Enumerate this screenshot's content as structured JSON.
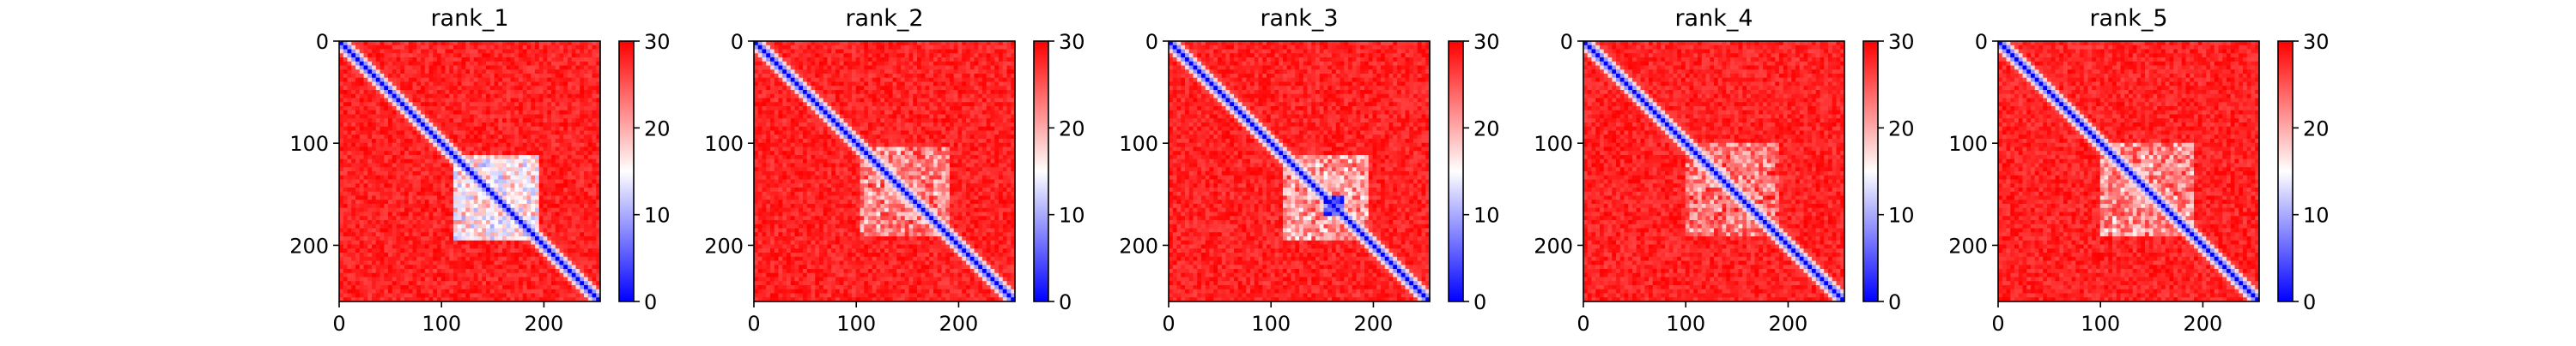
{
  "chart_data": [
    {
      "type": "heatmap",
      "title": "rank_1",
      "n": 255,
      "x_ticks": [
        0,
        100,
        200
      ],
      "y_ticks": [
        0,
        100,
        200
      ],
      "colorbar": {
        "min": 0,
        "max": 30,
        "ticks": [
          0,
          10,
          20,
          30
        ],
        "colormap": "bwr"
      },
      "diagonal_band_value": 0,
      "off_diagonal_value": 30,
      "low_regions": [
        {
          "x": [
            112,
            196
          ],
          "y": [
            112,
            196
          ],
          "value": 16
        }
      ]
    },
    {
      "type": "heatmap",
      "title": "rank_2",
      "n": 255,
      "x_ticks": [
        0,
        100,
        200
      ],
      "y_ticks": [
        0,
        100,
        200
      ],
      "colorbar": {
        "min": 0,
        "max": 30,
        "ticks": [
          0,
          10,
          20,
          30
        ],
        "colormap": "bwr"
      },
      "diagonal_band_value": 0,
      "off_diagonal_value": 30,
      "low_regions": [
        {
          "x": [
            105,
            190
          ],
          "y": [
            105,
            190
          ],
          "value": 22
        }
      ]
    },
    {
      "type": "heatmap",
      "title": "rank_3",
      "n": 255,
      "x_ticks": [
        0,
        100,
        200
      ],
      "y_ticks": [
        0,
        100,
        200
      ],
      "colorbar": {
        "min": 0,
        "max": 30,
        "ticks": [
          0,
          10,
          20,
          30
        ],
        "colormap": "bwr"
      },
      "diagonal_band_value": 0,
      "off_diagonal_value": 30,
      "low_regions": [
        {
          "x": [
            110,
            195
          ],
          "y": [
            110,
            195
          ],
          "value": 21
        },
        {
          "x": [
            150,
            170
          ],
          "y": [
            150,
            170
          ],
          "value": 4
        }
      ]
    },
    {
      "type": "heatmap",
      "title": "rank_4",
      "n": 255,
      "x_ticks": [
        0,
        100,
        200
      ],
      "y_ticks": [
        0,
        100,
        200
      ],
      "colorbar": {
        "min": 0,
        "max": 30,
        "ticks": [
          0,
          10,
          20,
          30
        ],
        "colormap": "bwr"
      },
      "diagonal_band_value": 0,
      "off_diagonal_value": 30,
      "low_regions": [
        {
          "x": [
            100,
            190
          ],
          "y": [
            100,
            190
          ],
          "value": 23
        }
      ]
    },
    {
      "type": "heatmap",
      "title": "rank_5",
      "n": 255,
      "x_ticks": [
        0,
        100,
        200
      ],
      "y_ticks": [
        0,
        100,
        200
      ],
      "colorbar": {
        "min": 0,
        "max": 30,
        "ticks": [
          0,
          10,
          20,
          30
        ],
        "colormap": "bwr"
      },
      "diagonal_band_value": 0,
      "off_diagonal_value": 30,
      "low_regions": [
        {
          "x": [
            100,
            190
          ],
          "y": [
            100,
            190
          ],
          "value": 22
        }
      ]
    }
  ]
}
